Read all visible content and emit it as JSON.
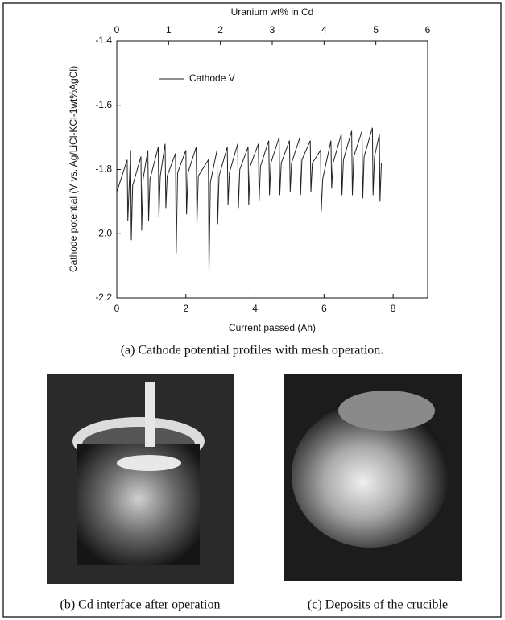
{
  "chart_data": {
    "type": "line",
    "xlabel": "Current passed (Ah)",
    "ylabel": "Cathode potential (V vs. Ag/LiCl-KCl-1wt%AgCl)",
    "x2label": "Uranium wt% in Cd",
    "xlim": [
      0,
      9
    ],
    "xticks": [
      0,
      2,
      4,
      6,
      8
    ],
    "x2lim": [
      0,
      6
    ],
    "x2ticks": [
      0,
      1,
      2,
      3,
      4,
      5,
      6
    ],
    "ylim": [
      -2.2,
      -1.4
    ],
    "yticks": [
      -2.2,
      {
        "value": -2.0,
        "label": "-2.0"
      },
      -1.8,
      -1.6,
      -1.4
    ],
    "legend": "upper left",
    "series": [
      {
        "name": "Cathode V",
        "color": "#222222",
        "x": [
          0,
          0.3,
          0.32,
          0.36,
          0.4,
          0.42,
          0.46,
          0.7,
          0.72,
          0.76,
          0.9,
          0.92,
          0.96,
          1.2,
          1.22,
          1.26,
          1.4,
          1.42,
          1.46,
          1.7,
          1.72,
          1.76,
          2.0,
          2.02,
          2.06,
          2.3,
          2.32,
          2.36,
          2.65,
          2.67,
          2.71,
          2.9,
          2.92,
          2.96,
          3.2,
          3.22,
          3.26,
          3.5,
          3.52,
          3.56,
          3.8,
          3.82,
          3.86,
          4.1,
          4.12,
          4.16,
          4.4,
          4.42,
          4.46,
          4.7,
          4.72,
          4.76,
          5.0,
          5.02,
          5.06,
          5.3,
          5.32,
          5.36,
          5.6,
          5.62,
          5.66,
          5.9,
          5.92,
          5.96,
          6.2,
          6.22,
          6.26,
          6.5,
          6.52,
          6.56,
          6.8,
          6.82,
          6.86,
          7.1,
          7.12,
          7.16,
          7.4,
          7.42,
          7.46,
          7.6,
          7.62,
          7.66
        ],
        "values": [
          -1.87,
          -1.77,
          -1.96,
          -1.85,
          -1.74,
          -2.02,
          -1.85,
          -1.76,
          -1.99,
          -1.83,
          -1.74,
          -1.96,
          -1.83,
          -1.73,
          -1.95,
          -1.82,
          -1.72,
          -1.92,
          -1.82,
          -1.75,
          -2.06,
          -1.81,
          -1.74,
          -1.94,
          -1.81,
          -1.73,
          -1.97,
          -1.82,
          -1.77,
          -2.12,
          -1.84,
          -1.74,
          -1.97,
          -1.82,
          -1.73,
          -1.91,
          -1.81,
          -1.72,
          -1.92,
          -1.8,
          -1.73,
          -1.91,
          -1.79,
          -1.72,
          -1.9,
          -1.79,
          -1.71,
          -1.88,
          -1.78,
          -1.7,
          -1.88,
          -1.78,
          -1.71,
          -1.87,
          -1.78,
          -1.7,
          -1.88,
          -1.77,
          -1.71,
          -1.87,
          -1.78,
          -1.74,
          -1.93,
          -1.83,
          -1.71,
          -1.86,
          -1.78,
          -1.69,
          -1.88,
          -1.77,
          -1.68,
          -1.88,
          -1.76,
          -1.68,
          -1.89,
          -1.76,
          -1.67,
          -1.88,
          -1.76,
          -1.69,
          -1.9,
          -1.78
        ]
      }
    ]
  },
  "captions": {
    "a": "(a) Cathode potential profiles with mesh operation.",
    "b": "(b) Cd interface after operation",
    "c": "(c) Deposits of the crucible"
  }
}
